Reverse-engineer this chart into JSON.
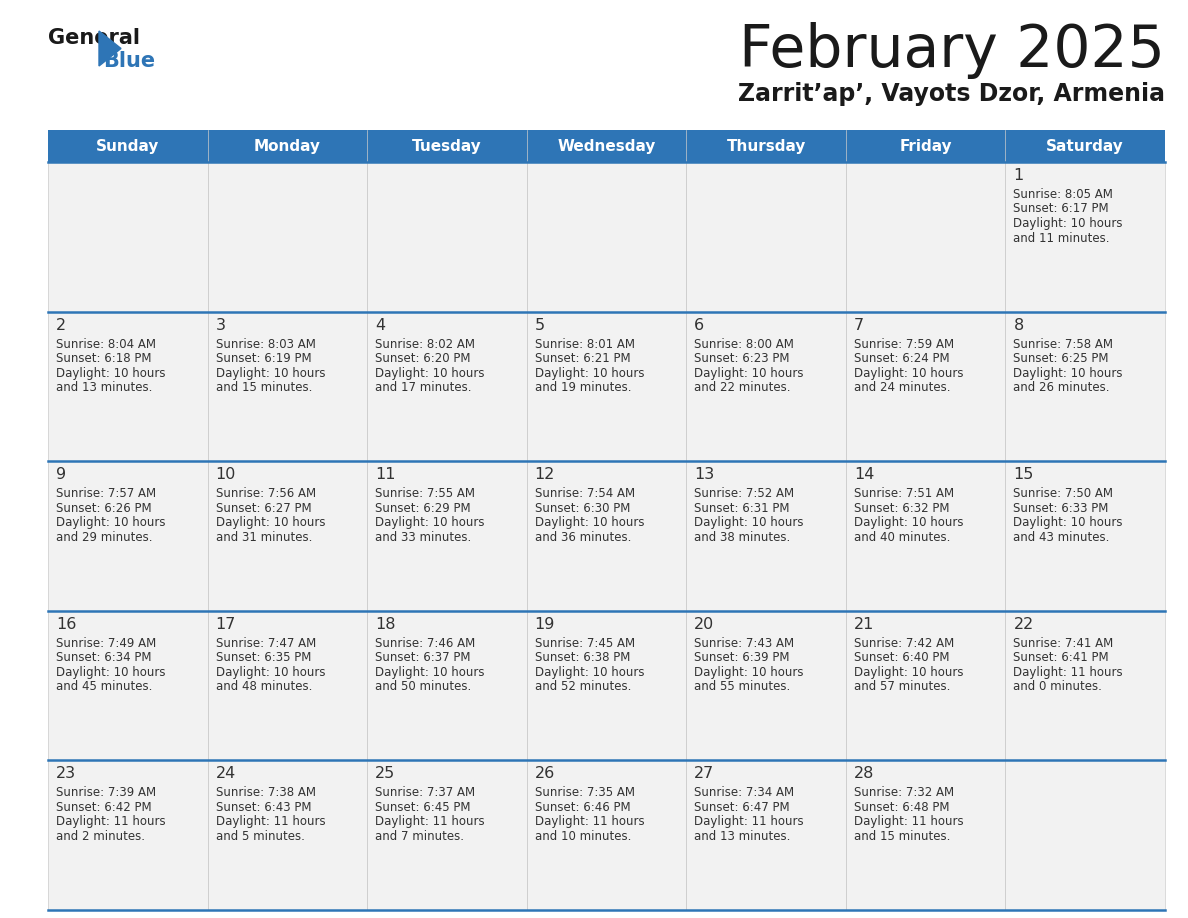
{
  "title": "February 2025",
  "subtitle": "Zarrit’ap’, Vayots Dzor, Armenia",
  "days_of_week": [
    "Sunday",
    "Monday",
    "Tuesday",
    "Wednesday",
    "Thursday",
    "Friday",
    "Saturday"
  ],
  "header_bg": "#2E75B6",
  "header_text": "#FFFFFF",
  "cell_bg": "#F2F2F2",
  "border_color": "#2E75B6",
  "day_num_color": "#333333",
  "info_color": "#333333",
  "title_color": "#1a1a1a",
  "subtitle_color": "#1a1a1a",
  "calendar_data": [
    [
      null,
      null,
      null,
      null,
      null,
      null,
      {
        "day": 1,
        "sunrise": "8:05 AM",
        "sunset": "6:17 PM",
        "daylight": "10 hours",
        "daylight2": "and 11 minutes."
      }
    ],
    [
      {
        "day": 2,
        "sunrise": "8:04 AM",
        "sunset": "6:18 PM",
        "daylight": "10 hours",
        "daylight2": "and 13 minutes."
      },
      {
        "day": 3,
        "sunrise": "8:03 AM",
        "sunset": "6:19 PM",
        "daylight": "10 hours",
        "daylight2": "and 15 minutes."
      },
      {
        "day": 4,
        "sunrise": "8:02 AM",
        "sunset": "6:20 PM",
        "daylight": "10 hours",
        "daylight2": "and 17 minutes."
      },
      {
        "day": 5,
        "sunrise": "8:01 AM",
        "sunset": "6:21 PM",
        "daylight": "10 hours",
        "daylight2": "and 19 minutes."
      },
      {
        "day": 6,
        "sunrise": "8:00 AM",
        "sunset": "6:23 PM",
        "daylight": "10 hours",
        "daylight2": "and 22 minutes."
      },
      {
        "day": 7,
        "sunrise": "7:59 AM",
        "sunset": "6:24 PM",
        "daylight": "10 hours",
        "daylight2": "and 24 minutes."
      },
      {
        "day": 8,
        "sunrise": "7:58 AM",
        "sunset": "6:25 PM",
        "daylight": "10 hours",
        "daylight2": "and 26 minutes."
      }
    ],
    [
      {
        "day": 9,
        "sunrise": "7:57 AM",
        "sunset": "6:26 PM",
        "daylight": "10 hours",
        "daylight2": "and 29 minutes."
      },
      {
        "day": 10,
        "sunrise": "7:56 AM",
        "sunset": "6:27 PM",
        "daylight": "10 hours",
        "daylight2": "and 31 minutes."
      },
      {
        "day": 11,
        "sunrise": "7:55 AM",
        "sunset": "6:29 PM",
        "daylight": "10 hours",
        "daylight2": "and 33 minutes."
      },
      {
        "day": 12,
        "sunrise": "7:54 AM",
        "sunset": "6:30 PM",
        "daylight": "10 hours",
        "daylight2": "and 36 minutes."
      },
      {
        "day": 13,
        "sunrise": "7:52 AM",
        "sunset": "6:31 PM",
        "daylight": "10 hours",
        "daylight2": "and 38 minutes."
      },
      {
        "day": 14,
        "sunrise": "7:51 AM",
        "sunset": "6:32 PM",
        "daylight": "10 hours",
        "daylight2": "and 40 minutes."
      },
      {
        "day": 15,
        "sunrise": "7:50 AM",
        "sunset": "6:33 PM",
        "daylight": "10 hours",
        "daylight2": "and 43 minutes."
      }
    ],
    [
      {
        "day": 16,
        "sunrise": "7:49 AM",
        "sunset": "6:34 PM",
        "daylight": "10 hours",
        "daylight2": "and 45 minutes."
      },
      {
        "day": 17,
        "sunrise": "7:47 AM",
        "sunset": "6:35 PM",
        "daylight": "10 hours",
        "daylight2": "and 48 minutes."
      },
      {
        "day": 18,
        "sunrise": "7:46 AM",
        "sunset": "6:37 PM",
        "daylight": "10 hours",
        "daylight2": "and 50 minutes."
      },
      {
        "day": 19,
        "sunrise": "7:45 AM",
        "sunset": "6:38 PM",
        "daylight": "10 hours",
        "daylight2": "and 52 minutes."
      },
      {
        "day": 20,
        "sunrise": "7:43 AM",
        "sunset": "6:39 PM",
        "daylight": "10 hours",
        "daylight2": "and 55 minutes."
      },
      {
        "day": 21,
        "sunrise": "7:42 AM",
        "sunset": "6:40 PM",
        "daylight": "10 hours",
        "daylight2": "and 57 minutes."
      },
      {
        "day": 22,
        "sunrise": "7:41 AM",
        "sunset": "6:41 PM",
        "daylight": "11 hours",
        "daylight2": "and 0 minutes."
      }
    ],
    [
      {
        "day": 23,
        "sunrise": "7:39 AM",
        "sunset": "6:42 PM",
        "daylight": "11 hours",
        "daylight2": "and 2 minutes."
      },
      {
        "day": 24,
        "sunrise": "7:38 AM",
        "sunset": "6:43 PM",
        "daylight": "11 hours",
        "daylight2": "and 5 minutes."
      },
      {
        "day": 25,
        "sunrise": "7:37 AM",
        "sunset": "6:45 PM",
        "daylight": "11 hours",
        "daylight2": "and 7 minutes."
      },
      {
        "day": 26,
        "sunrise": "7:35 AM",
        "sunset": "6:46 PM",
        "daylight": "11 hours",
        "daylight2": "and 10 minutes."
      },
      {
        "day": 27,
        "sunrise": "7:34 AM",
        "sunset": "6:47 PM",
        "daylight": "11 hours",
        "daylight2": "and 13 minutes."
      },
      {
        "day": 28,
        "sunrise": "7:32 AM",
        "sunset": "6:48 PM",
        "daylight": "11 hours",
        "daylight2": "and 15 minutes."
      },
      null
    ]
  ]
}
